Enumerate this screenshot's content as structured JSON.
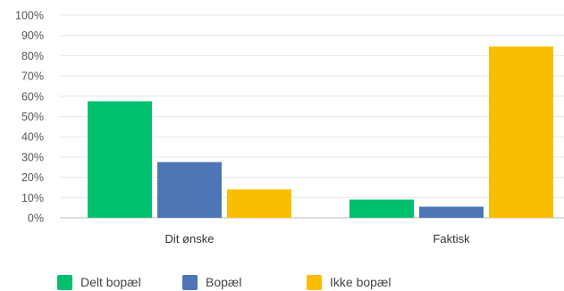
{
  "chart_data": {
    "type": "bar",
    "categories": [
      "Dit ønske",
      "Faktisk"
    ],
    "series": [
      {
        "name": "Delt bopæl",
        "color": "#00bf6f",
        "values": [
          57.5,
          9
        ]
      },
      {
        "name": "Bopæl",
        "color": "#4e75b5",
        "values": [
          27.5,
          5.5
        ]
      },
      {
        "name": "Ikke bopæl",
        "color": "#f9be00",
        "values": [
          14,
          84.5
        ]
      }
    ],
    "ylim": [
      0,
      100
    ],
    "yticks": [
      "0%",
      "10%",
      "20%",
      "30%",
      "40%",
      "50%",
      "60%",
      "70%",
      "80%",
      "90%",
      "100%"
    ],
    "grid": true,
    "legend": "bottom"
  }
}
